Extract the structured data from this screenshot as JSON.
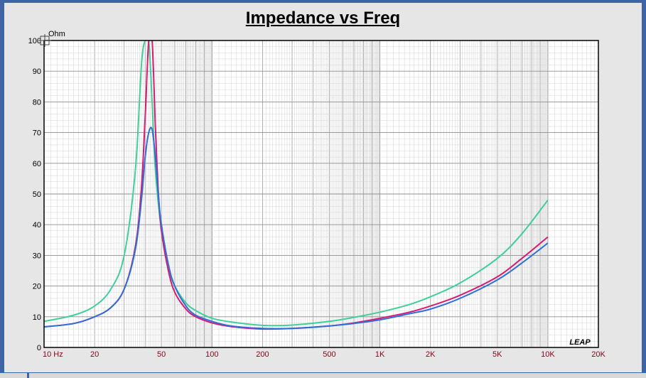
{
  "chart_data": {
    "type": "line",
    "title": "Impedance vs Freq",
    "ylabel": "Ohm",
    "xlabel": "",
    "xscale": "log",
    "xlim": [
      10,
      20000
    ],
    "ylim": [
      0,
      100
    ],
    "grid": true,
    "x_ticks": [
      {
        "value": 10,
        "label": "10  Hz"
      },
      {
        "value": 20,
        "label": "20"
      },
      {
        "value": 50,
        "label": "50"
      },
      {
        "value": 100,
        "label": "100"
      },
      {
        "value": 200,
        "label": "200"
      },
      {
        "value": 500,
        "label": "500"
      },
      {
        "value": 1000,
        "label": "1K"
      },
      {
        "value": 2000,
        "label": "2K"
      },
      {
        "value": 5000,
        "label": "5K"
      },
      {
        "value": 10000,
        "label": "10K"
      },
      {
        "value": 20000,
        "label": "20K"
      }
    ],
    "y_ticks": [
      {
        "value": 0,
        "label": "0"
      },
      {
        "value": 10,
        "label": "10"
      },
      {
        "value": 20,
        "label": "20"
      },
      {
        "value": 30,
        "label": "30"
      },
      {
        "value": 40,
        "label": "40"
      },
      {
        "value": 50,
        "label": "50"
      },
      {
        "value": 60,
        "label": "60"
      },
      {
        "value": 70,
        "label": "70"
      },
      {
        "value": 80,
        "label": "80"
      },
      {
        "value": 90,
        "label": "90"
      },
      {
        "value": 100,
        "label": "100"
      }
    ],
    "series": [
      {
        "color": "#3fcf9a",
        "x": [
          10,
          15,
          20,
          25,
          30,
          35,
          38,
          40,
          42,
          44,
          46,
          50,
          55,
          60,
          70,
          80,
          100,
          130,
          200,
          300,
          500,
          700,
          1000,
          1500,
          2000,
          3000,
          5000,
          7000,
          10000
        ],
        "y": [
          8.5,
          10.5,
          13.5,
          19,
          30,
          58,
          92,
          100,
          100,
          80,
          58,
          38,
          26,
          20,
          14.5,
          12,
          9.5,
          8.3,
          7.2,
          7.3,
          8.5,
          9.8,
          11.5,
          14,
          16.5,
          21,
          29,
          37,
          48
        ]
      },
      {
        "color": "#d81b73",
        "x": [
          10,
          15,
          20,
          25,
          30,
          35,
          38,
          40,
          42,
          44,
          46,
          48,
          50,
          55,
          60,
          70,
          80,
          100,
          130,
          200,
          300,
          500,
          700,
          1000,
          1500,
          2000,
          3000,
          5000,
          7000,
          10000
        ],
        "y": [
          6.7,
          7.8,
          10,
          13,
          19,
          33,
          52,
          75,
          100,
          100,
          72,
          50,
          38,
          25,
          18,
          12.5,
          10,
          8,
          6.8,
          6,
          6.2,
          7,
          8,
          9.5,
          11.5,
          13.5,
          17,
          23,
          29,
          36
        ]
      },
      {
        "color": "#2f6fd6",
        "x": [
          10,
          15,
          20,
          25,
          30,
          35,
          38,
          40,
          42,
          44,
          46,
          48,
          50,
          55,
          60,
          70,
          80,
          100,
          130,
          200,
          300,
          500,
          700,
          1000,
          1500,
          2000,
          3000,
          5000,
          7000,
          10000
        ],
        "y": [
          6.7,
          7.8,
          10,
          13,
          19,
          32,
          48,
          62,
          70,
          71,
          62,
          49,
          40,
          27,
          20,
          13.5,
          10.5,
          8.5,
          7,
          6.2,
          6.2,
          7,
          7.8,
          9,
          11,
          12.5,
          16,
          22,
          27.5,
          34
        ]
      }
    ],
    "watermark": "LEAP"
  }
}
